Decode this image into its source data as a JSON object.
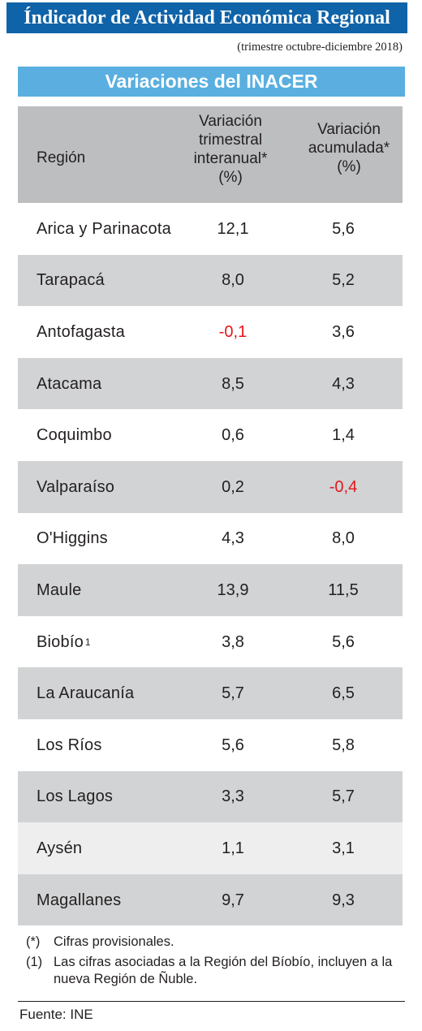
{
  "title": "Índicador de Actividad Económica Regional",
  "subtitle": "(trimestre octubre-diciembre 2018)",
  "section_title": "Variaciones del INACER",
  "colors": {
    "title_bg": "#0f63a8",
    "section_bg": "#5aafe0",
    "header_bg": "#bcbec0",
    "stripe_bg": "#d1d3d4",
    "negative": "#e4161b"
  },
  "chart_data": {
    "type": "table",
    "columns": [
      "Región",
      "Variación trimestral interanual* (%)",
      "Variación acumulada* (%)"
    ],
    "rows": [
      {
        "region": "Arica y Parinacota",
        "trimestral": "12,1",
        "acumulada": "5,6"
      },
      {
        "region": "Tarapacá",
        "trimestral": "8,0",
        "acumulada": "5,2"
      },
      {
        "region": "Antofagasta",
        "trimestral": "-0,1",
        "acumulada": "3,6"
      },
      {
        "region": "Atacama",
        "trimestral": "8,5",
        "acumulada": "4,3"
      },
      {
        "region": "Coquimbo",
        "trimestral": "0,6",
        "acumulada": "1,4"
      },
      {
        "region": "Valparaíso",
        "trimestral": "0,2",
        "acumulada": "-0,4"
      },
      {
        "region": "O'Higgins",
        "trimestral": "4,3",
        "acumulada": "8,0"
      },
      {
        "region": "Maule",
        "trimestral": "13,9",
        "acumulada": "11,5"
      },
      {
        "region": "Biobío",
        "footnote": "1",
        "trimestral": "3,8",
        "acumulada": "5,6"
      },
      {
        "region": "La Araucanía",
        "trimestral": "5,7",
        "acumulada": "6,5"
      },
      {
        "region": "Los Ríos",
        "trimestral": "5,6",
        "acumulada": "5,8"
      },
      {
        "region": "Los Lagos",
        "trimestral": "3,3",
        "acumulada": "5,7"
      },
      {
        "region": "Aysén",
        "trimestral": "1,1",
        "acumulada": "3,1"
      },
      {
        "region": "Magallanes",
        "trimestral": "9,7",
        "acumulada": "9,3"
      }
    ]
  },
  "header": {
    "region": "Región",
    "col1": [
      "Variación",
      "trimestral",
      "interanual*",
      "(%)"
    ],
    "col2": [
      "Variación",
      "acumulada*",
      "(%)"
    ]
  },
  "notes": [
    {
      "mark": "(*)",
      "text": "Cifras provisionales."
    },
    {
      "mark": "(1)",
      "text": "Las cifras asociadas a la Región del Bíobío, incluyen a la nueva Región de Ñuble."
    }
  ],
  "source": "Fuente: INE"
}
